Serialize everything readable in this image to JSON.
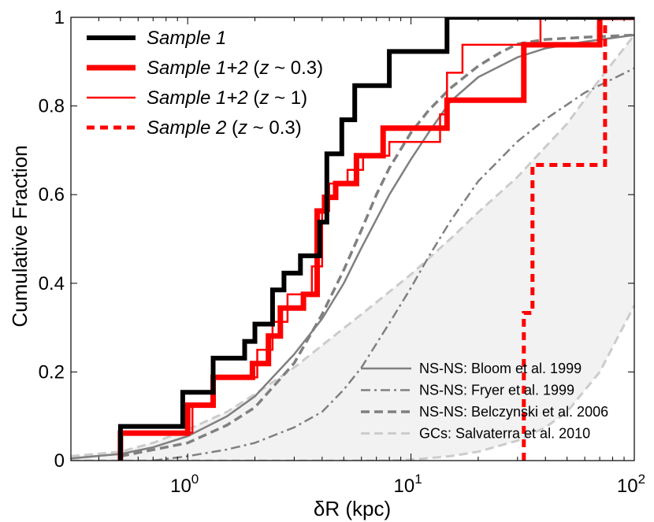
{
  "chart_data": {
    "type": "line",
    "xlabel": "δR  (kpc)",
    "ylabel": "Cumulative Fraction",
    "x_scale": "log",
    "xlim": [
      0.3,
      100
    ],
    "ylim": [
      0,
      1
    ],
    "x_ticks": [
      {
        "value": 1,
        "base": "10",
        "exp": "0"
      },
      {
        "value": 10,
        "base": "10",
        "exp": "1"
      },
      {
        "value": 100,
        "base": "10",
        "exp": "2"
      }
    ],
    "y_ticks": [
      {
        "value": 0,
        "label": "0"
      },
      {
        "value": 0.2,
        "label": "0.2"
      },
      {
        "value": 0.4,
        "label": "0.4"
      },
      {
        "value": 0.6,
        "label": "0.6"
      },
      {
        "value": 0.8,
        "label": "0.8"
      },
      {
        "value": 1,
        "label": "1"
      }
    ],
    "legend_top_left": [
      {
        "series": "s1",
        "parts": [
          {
            "t": "Sample 1",
            "i": true
          }
        ]
      },
      {
        "series": "s12a",
        "parts": [
          {
            "t": "Sample 1+2",
            "i": true
          },
          {
            "t": " (",
            "i": false
          },
          {
            "t": "z",
            "i": true
          },
          {
            "t": " ~ 0.3)",
            "i": false
          }
        ]
      },
      {
        "series": "s12b",
        "parts": [
          {
            "t": "Sample 1+2",
            "i": true
          },
          {
            "t": " (",
            "i": false
          },
          {
            "t": "z",
            "i": true
          },
          {
            "t": " ~ 1)",
            "i": false
          }
        ]
      },
      {
        "series": "s2",
        "parts": [
          {
            "t": "Sample 2",
            "i": true
          },
          {
            "t": " (",
            "i": false
          },
          {
            "t": "z",
            "i": true
          },
          {
            "t": " ~ 0.3)",
            "i": false
          }
        ]
      }
    ],
    "legend_bottom_right": [
      {
        "series": "bloom",
        "label": "NS-NS: Bloom et al. 1999"
      },
      {
        "series": "fryer",
        "label": "NS-NS: Fryer et al. 1999"
      },
      {
        "series": "belc",
        "label": "NS-NS: Belczynski et al. 2006"
      },
      {
        "series": "gcs",
        "label": "GCs: Salvaterra et al. 2010"
      }
    ],
    "series": [
      {
        "id": "s1",
        "name": "Sample 1",
        "kind": "step",
        "color": "#000000",
        "width": 6,
        "dash": "",
        "x": [
          0.5,
          0.95,
          1.3,
          1.8,
          2.0,
          2.4,
          2.7,
          3.2,
          3.9,
          4.2,
          4.9,
          5.6,
          8.0,
          14.5
        ],
        "y": [
          0.077,
          0.154,
          0.231,
          0.269,
          0.308,
          0.385,
          0.423,
          0.462,
          0.538,
          0.692,
          0.769,
          0.846,
          0.923,
          1.0
        ]
      },
      {
        "id": "s12a",
        "name": "Sample 1+2 (z ~ 0.3)",
        "kind": "step",
        "color": "#ff0000",
        "width": 7,
        "dash": "",
        "x": [
          0.5,
          1.0,
          1.3,
          1.95,
          2.3,
          2.6,
          3.3,
          3.8,
          4.1,
          4.6,
          5.7,
          7.5,
          14.5,
          32,
          70
        ],
        "y": [
          0.062,
          0.125,
          0.188,
          0.219,
          0.281,
          0.344,
          0.375,
          0.563,
          0.594,
          0.625,
          0.688,
          0.75,
          0.813,
          0.938,
          1.0
        ]
      },
      {
        "id": "s12b",
        "name": "Sample 1+2 (z ~ 1)",
        "kind": "step",
        "color": "#ff0000",
        "width": 2.5,
        "dash": "",
        "x": [
          0.5,
          1.05,
          1.3,
          2.05,
          2.4,
          2.8,
          3.6,
          4.0,
          4.3,
          5.2,
          6.1,
          8.0,
          13.5,
          14.5,
          17,
          38
        ],
        "y": [
          0.063,
          0.125,
          0.188,
          0.25,
          0.313,
          0.375,
          0.438,
          0.563,
          0.625,
          0.656,
          0.688,
          0.719,
          0.781,
          0.875,
          0.938,
          1.0
        ]
      },
      {
        "id": "s2",
        "name": "Sample 2 (z ~ 0.3)",
        "kind": "step",
        "color": "#ff0000",
        "width": 5,
        "dash": "10,7",
        "x": [
          32,
          34,
          35,
          74
        ],
        "y": [
          0.333,
          0.333,
          0.667,
          1.0
        ]
      },
      {
        "id": "bloom",
        "name": "NS-NS: Bloom et al. 1999",
        "kind": "line",
        "color": "#808080",
        "width": 2.5,
        "dash": "",
        "x": [
          0.3,
          0.5,
          0.7,
          1.0,
          1.5,
          2.0,
          3.0,
          4.0,
          5.0,
          6.0,
          8.0,
          10.0,
          12.0,
          15.0,
          20.0,
          30.0,
          40.0,
          60.0,
          100.0
        ],
        "y": [
          0.005,
          0.015,
          0.03,
          0.055,
          0.1,
          0.145,
          0.24,
          0.32,
          0.4,
          0.48,
          0.6,
          0.68,
          0.74,
          0.81,
          0.865,
          0.91,
          0.93,
          0.945,
          0.96
        ]
      },
      {
        "id": "fryer",
        "name": "NS-NS: Fryer et al. 1999",
        "kind": "line",
        "color": "#808080",
        "width": 2.5,
        "dash": "12,5,3,5",
        "x": [
          0.7,
          1.0,
          1.5,
          2.0,
          3.0,
          4.0,
          5.0,
          6.0,
          8.0,
          10.0,
          12.0,
          15.0,
          20.0,
          30.0,
          40.0,
          60.0,
          100.0
        ],
        "y": [
          0.0,
          0.01,
          0.025,
          0.04,
          0.075,
          0.11,
          0.16,
          0.21,
          0.31,
          0.39,
          0.46,
          0.54,
          0.63,
          0.72,
          0.77,
          0.83,
          0.885
        ]
      },
      {
        "id": "belc",
        "name": "NS-NS: Belczynski et al. 2006",
        "kind": "line",
        "color": "#808080",
        "width": 3.5,
        "dash": "11,6",
        "x": [
          0.5,
          1.0,
          1.5,
          2.0,
          3.0,
          4.0,
          5.0,
          6.0,
          7.0,
          8.0,
          10.0,
          12.0,
          15.0,
          20.0,
          25.0,
          30.0,
          40.0,
          60.0,
          100.0
        ],
        "y": [
          0.01,
          0.04,
          0.08,
          0.12,
          0.22,
          0.33,
          0.43,
          0.52,
          0.6,
          0.66,
          0.74,
          0.79,
          0.84,
          0.89,
          0.92,
          0.94,
          0.95,
          0.955,
          0.96
        ]
      },
      {
        "id": "gcs",
        "name": "GCs: Salvaterra et al. 2010",
        "kind": "band",
        "color": "#cccccc",
        "width": 3,
        "dash": "11,6",
        "fill": "#f2f2f2",
        "upper": {
          "x": [
            0.3,
            0.5,
            0.7,
            1.0,
            1.5,
            2.0,
            3.0,
            4.0,
            6.0,
            10.0,
            15.0,
            20.0,
            30.0,
            50.0,
            70.0,
            100.0
          ],
          "y": [
            0.01,
            0.02,
            0.04,
            0.07,
            0.11,
            0.15,
            0.21,
            0.26,
            0.33,
            0.42,
            0.5,
            0.56,
            0.64,
            0.76,
            0.86,
            0.96
          ]
        },
        "lower": {
          "x": [
            0.3,
            5.0,
            8.0,
            10.0,
            15.0,
            20.0,
            30.0,
            40.0,
            50.0,
            70.0,
            100.0
          ],
          "y": [
            0.0,
            0.0,
            0.0,
            0.002,
            0.01,
            0.02,
            0.045,
            0.075,
            0.11,
            0.2,
            0.35
          ]
        }
      }
    ]
  }
}
